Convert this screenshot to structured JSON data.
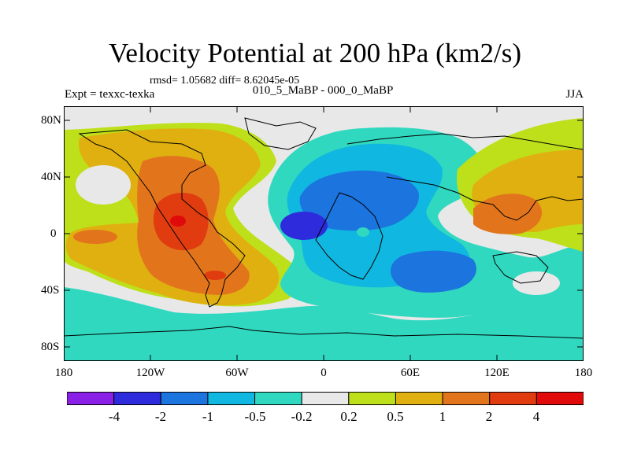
{
  "title": "Velocity Potential at 200 hPa (km2/s)",
  "stats": "rmsd= 1.05682 diff= 8.62045e-05",
  "expt": "Expt = texxc-texka",
  "case": "010_5_MaBP - 000_0_MaBP",
  "season": "JJA",
  "lat_labels": [
    "80N",
    "40N",
    "0",
    "40S",
    "80S"
  ],
  "lon_labels": [
    "180",
    "120W",
    "60W",
    "0",
    "60E",
    "120E",
    "180"
  ],
  "colorbar": {
    "labels": [
      "-4",
      "-2",
      "-1",
      "-0.5",
      "-0.2",
      "0.2",
      "0.5",
      "1",
      "2",
      "4"
    ],
    "colors": [
      "#8a1fe6",
      "#2d2bdb",
      "#1c74de",
      "#10b7e0",
      "#30d8c0",
      "#e8e8e8",
      "#bde01a",
      "#e0b010",
      "#e2751c",
      "#e03c10",
      "#e00a0a"
    ]
  },
  "chart_data": {
    "type": "contour-map",
    "variable": "Velocity Potential at 200 hPa",
    "units": "km2/s",
    "season": "JJA",
    "levels": [
      -4,
      -2,
      -1,
      -0.5,
      -0.2,
      0.2,
      0.5,
      1,
      2,
      4
    ],
    "xlim": [
      -180,
      180
    ],
    "ylim": [
      -90,
      90
    ],
    "features": [
      {
        "type": "min",
        "lon": -12,
        "lat": 5,
        "value": -4
      },
      {
        "type": "max",
        "lon": -105,
        "lat": 8,
        "value": 4
      },
      {
        "type": "max",
        "lon": 130,
        "lat": 10,
        "value": 2
      }
    ]
  }
}
